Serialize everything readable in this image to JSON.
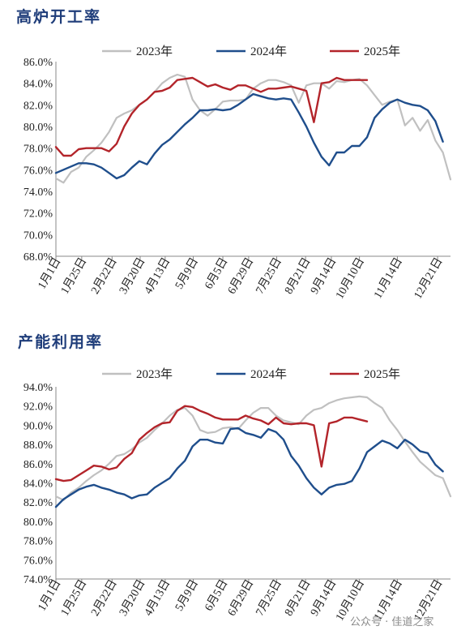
{
  "watermark": "公众号 · 佳道之家",
  "chart_data": [
    {
      "type": "line",
      "title": "高炉开工率",
      "xlabel": "",
      "ylabel": "",
      "ylim": [
        68,
        86
      ],
      "y_ticks": [
        "86.0%",
        "84.0%",
        "82.0%",
        "80.0%",
        "78.0%",
        "76.0%",
        "74.0%",
        "72.0%",
        "70.0%",
        "68.0%"
      ],
      "y_tick_values": [
        86,
        84,
        82,
        80,
        78,
        76,
        74,
        72,
        70,
        68
      ],
      "x_ticks": [
        "1月1日",
        "1月25日",
        "2月22日",
        "3月20日",
        "4月13日",
        "5月9日",
        "6月5日",
        "6月29日",
        "7月25日",
        "8月21日",
        "9月14日",
        "10月10日",
        "11月14日",
        "12月21日"
      ],
      "x_tick_weeks": [
        0,
        3.4,
        7.4,
        11.1,
        14.4,
        18.1,
        22.0,
        25.4,
        29.1,
        32.9,
        36.3,
        40.0,
        45.0,
        50.3
      ],
      "legend_position": "top",
      "series": [
        {
          "name": "2023年",
          "color": "#c0c0c0",
          "values": [
            75.2,
            74.8,
            75.8,
            76.2,
            77.2,
            77.8,
            78.5,
            79.5,
            80.8,
            81.2,
            81.5,
            82.0,
            82.5,
            83.2,
            84.0,
            84.5,
            84.8,
            84.6,
            82.5,
            81.5,
            81.0,
            81.6,
            82.3,
            82.4,
            82.4,
            82.5,
            83.5,
            84.0,
            84.3,
            84.3,
            84.1,
            83.8,
            82.2,
            83.8,
            84.0,
            84.0,
            83.5,
            84.2,
            84.1,
            84.3,
            84.4,
            83.8,
            82.9,
            82.0,
            82.3,
            82.5,
            80.1,
            80.8,
            79.6,
            80.6,
            78.7,
            77.6,
            75.1
          ]
        },
        {
          "name": "2024年",
          "color": "#1f4e8c",
          "values": [
            75.7,
            76.0,
            76.3,
            76.6,
            76.6,
            76.5,
            76.2,
            75.7,
            75.2,
            75.5,
            76.2,
            76.8,
            76.5,
            77.5,
            78.3,
            78.8,
            79.5,
            80.2,
            80.8,
            81.5,
            81.5,
            81.6,
            81.5,
            81.6,
            82.0,
            82.5,
            83.0,
            82.8,
            82.6,
            82.5,
            82.6,
            82.5,
            81.3,
            80.0,
            78.5,
            77.2,
            76.4,
            77.6,
            77.6,
            78.2,
            78.2,
            79.0,
            80.8,
            81.6,
            82.2,
            82.5,
            82.2,
            82.0,
            81.9,
            81.5,
            80.5,
            78.6
          ]
        },
        {
          "name": "2025年",
          "color": "#b3242a",
          "values": [
            78.1,
            77.3,
            77.3,
            77.9,
            78.0,
            78.0,
            78.0,
            77.7,
            78.4,
            80.0,
            81.2,
            82.0,
            82.5,
            83.2,
            83.3,
            83.6,
            84.3,
            84.4,
            84.5,
            84.1,
            83.7,
            83.9,
            83.6,
            83.4,
            83.8,
            83.8,
            83.5,
            83.2,
            83.5,
            83.5,
            83.6,
            83.7,
            83.5,
            83.3,
            80.4,
            84.0,
            84.1,
            84.5,
            84.3,
            84.3,
            84.3,
            84.3
          ]
        }
      ]
    },
    {
      "type": "line",
      "title": "产能利用率",
      "xlabel": "",
      "ylabel": "",
      "ylim": [
        74,
        94
      ],
      "y_ticks": [
        "94.0%",
        "92.0%",
        "90.0%",
        "88.0%",
        "86.0%",
        "84.0%",
        "82.0%",
        "80.0%",
        "78.0%",
        "76.0%",
        "74.0%"
      ],
      "y_tick_values": [
        94,
        92,
        90,
        88,
        86,
        84,
        82,
        80,
        78,
        76,
        74
      ],
      "x_ticks": [
        "1月1日",
        "1月25日",
        "2月22日",
        "3月20日",
        "4月13日",
        "5月9日",
        "6月5日",
        "6月29日",
        "7月25日",
        "8月21日",
        "9月14日",
        "10月10日",
        "11月14日",
        "12月21日"
      ],
      "x_tick_weeks": [
        0,
        3.4,
        7.4,
        11.1,
        14.4,
        18.1,
        22.0,
        25.4,
        29.1,
        32.9,
        36.3,
        40.0,
        45.0,
        50.3
      ],
      "legend_position": "top",
      "series": [
        {
          "name": "2023年",
          "color": "#c0c0c0",
          "values": [
            82.6,
            82.2,
            83.0,
            83.5,
            84.2,
            84.8,
            85.3,
            86.0,
            86.8,
            87.0,
            87.5,
            88.2,
            88.7,
            89.5,
            90.2,
            91.0,
            91.6,
            91.8,
            91.0,
            89.5,
            89.2,
            89.3,
            89.7,
            89.8,
            89.6,
            90.5,
            91.3,
            91.8,
            91.8,
            91.0,
            90.5,
            90.3,
            90.1,
            91.0,
            91.6,
            91.8,
            92.3,
            92.6,
            92.8,
            92.9,
            93.0,
            92.9,
            92.3,
            91.8,
            90.5,
            89.5,
            88.3,
            87.2,
            86.2,
            85.5,
            84.8,
            84.5,
            82.6
          ]
        },
        {
          "name": "2024年",
          "color": "#1f4e8c",
          "values": [
            81.5,
            82.3,
            82.8,
            83.3,
            83.6,
            83.8,
            83.5,
            83.3,
            83.0,
            82.8,
            82.4,
            82.7,
            82.8,
            83.5,
            84.0,
            84.5,
            85.5,
            86.3,
            87.8,
            88.5,
            88.5,
            88.2,
            88.1,
            89.6,
            89.7,
            89.2,
            89.0,
            88.7,
            89.6,
            89.3,
            88.5,
            86.8,
            85.8,
            84.5,
            83.5,
            82.8,
            83.5,
            83.8,
            83.9,
            84.2,
            85.5,
            87.2,
            87.8,
            88.4,
            88.1,
            87.6,
            88.5,
            88.0,
            87.3,
            87.1,
            85.9,
            85.2
          ]
        },
        {
          "name": "2025年",
          "color": "#b3242a",
          "values": [
            84.4,
            84.2,
            84.3,
            84.8,
            85.3,
            85.8,
            85.7,
            85.4,
            85.6,
            86.5,
            87.1,
            88.5,
            89.2,
            89.8,
            90.2,
            90.3,
            91.5,
            92.0,
            91.9,
            91.5,
            91.2,
            90.8,
            90.6,
            90.6,
            90.6,
            91.0,
            90.7,
            90.5,
            90.1,
            90.8,
            90.2,
            90.1,
            90.2,
            90.2,
            90.0,
            85.7,
            90.2,
            90.4,
            90.8,
            90.8,
            90.6,
            90.4
          ]
        }
      ]
    }
  ]
}
